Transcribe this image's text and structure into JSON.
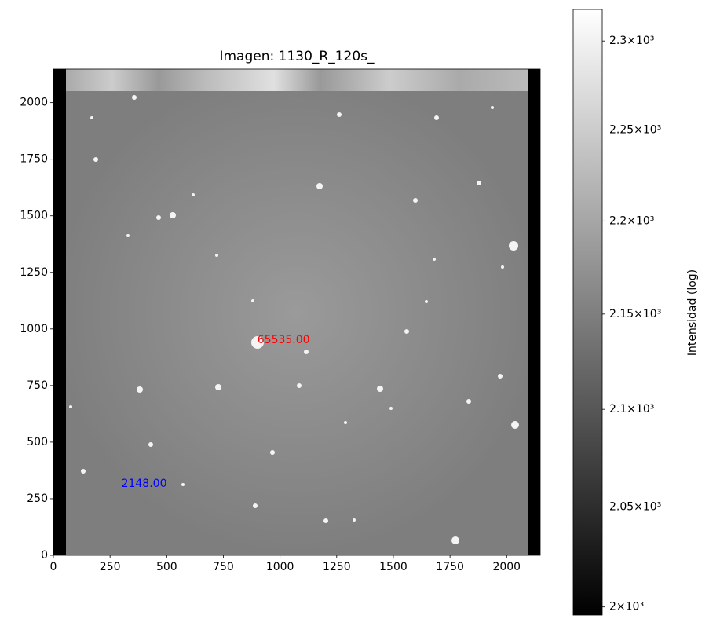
{
  "chart_data": {
    "type": "image",
    "title": "Imagen: 1130_R_120s_",
    "xlim": [
      0,
      2148
    ],
    "ylim": [
      0,
      2148
    ],
    "xticks": [
      0,
      250,
      500,
      750,
      1000,
      1250,
      1500,
      1750,
      2000
    ],
    "yticks": [
      0,
      250,
      500,
      750,
      1000,
      1250,
      1500,
      1750,
      2000
    ],
    "annotations": [
      {
        "text": "65535.00",
        "x": 900,
        "y": 950,
        "color": "#ff0000"
      },
      {
        "text": "2148.00",
        "x": 300,
        "y": 315,
        "color": "#0000ff"
      }
    ],
    "colorbar": {
      "label": "Intensidad (log)",
      "log": true,
      "lim": [
        1996,
        2318
      ],
      "ticks": [
        {
          "value": 2000,
          "label": "2×10³"
        },
        {
          "value": 2050,
          "label": "2.05×10³"
        },
        {
          "value": 2100,
          "label": "2.1×10³"
        },
        {
          "value": 2150,
          "label": "2.15×10³"
        },
        {
          "value": 2200,
          "label": "2.2×10³"
        },
        {
          "value": 2250,
          "label": "2.25×10³"
        },
        {
          "value": 2300,
          "label": "2.3×10³"
        }
      ]
    }
  }
}
